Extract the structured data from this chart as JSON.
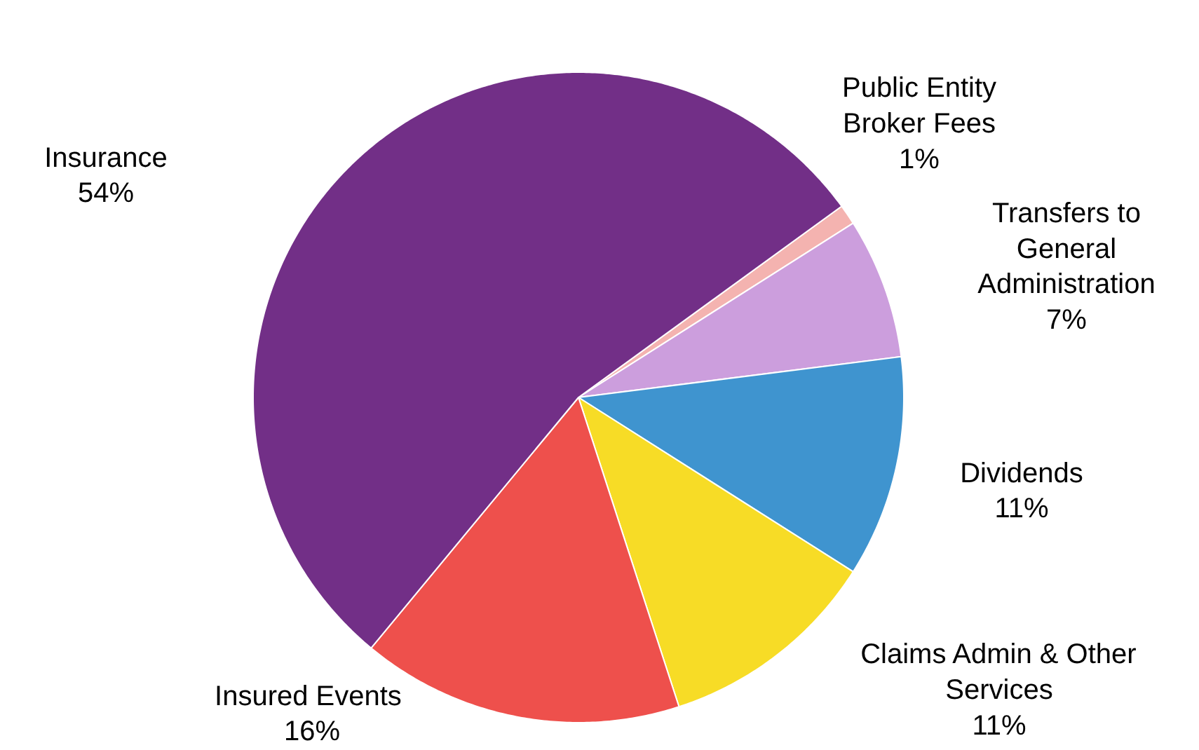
{
  "chart_data": {
    "type": "pie",
    "categories": [
      "Public Entity\nBroker Fees",
      "Transfers to\nGeneral\nAdministration",
      "Dividends",
      "Claims Admin & Other\nServices",
      "Insured  Events",
      "Insurance"
    ],
    "values": [
      1,
      7,
      11,
      11,
      16,
      54
    ],
    "value_labels": [
      "1%",
      "7%",
      "11%",
      "11%",
      "16%",
      "54%"
    ],
    "colors": [
      "#f4b3b0",
      "#cc9edd",
      "#3f94cf",
      "#f7dc26",
      "#ee504c",
      "#722f87"
    ]
  }
}
